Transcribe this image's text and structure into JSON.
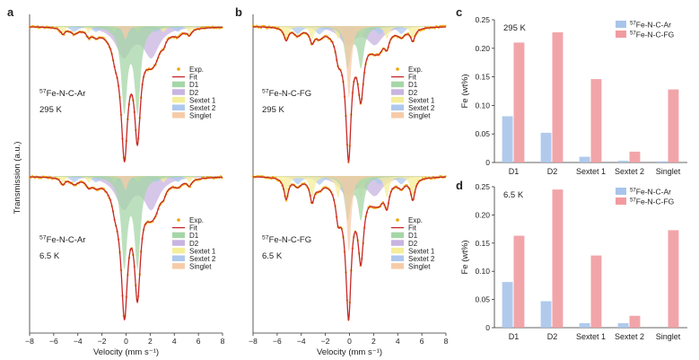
{
  "figure": {
    "panel_labels": [
      "a",
      "b",
      "c",
      "d"
    ],
    "left_ylabel": "Transmission (a.u.)",
    "colors": {
      "exp": "#f0a500",
      "fit": "#c62828",
      "D1": "#a5d6a7",
      "D2": "#c8b4e0",
      "Sextet 1": "#f5ee9a",
      "Sextet 2": "#aec8ee",
      "Singlet": "#f6cba8",
      "ar_bar": "#a9c4ea",
      "fg_bar": "#f19ba0"
    }
  },
  "spectra_panels": [
    {
      "panel": "a",
      "spectra": [
        {
          "sample": "57Fe-N-C-Ar",
          "temp": "295 K"
        },
        {
          "sample": "57Fe-N-C-Ar",
          "temp": "6.5 K"
        }
      ]
    },
    {
      "panel": "b",
      "spectra": [
        {
          "sample": "57Fe-N-C-FG",
          "temp": "295 K"
        },
        {
          "sample": "57Fe-N-C-FG",
          "temp": "6.5 K"
        }
      ]
    }
  ],
  "spectra_legend": [
    "Exp.",
    "Fit",
    "D1",
    "D2",
    "Sextet 1",
    "Sextet 2",
    "Singlet"
  ],
  "chart_data": [
    {
      "panel": "a",
      "type": "line",
      "xlabel": "Velocity (mm s⁻¹)",
      "ylabel": "Transmission (a.u.)",
      "xlim": [
        -8,
        8
      ],
      "xticks": [
        -8,
        -6,
        -4,
        -2,
        0,
        2,
        4,
        6,
        8
      ],
      "series": [
        {
          "name": "Exp."
        },
        {
          "name": "Fit"
        },
        {
          "name": "D1"
        },
        {
          "name": "D2"
        },
        {
          "name": "Sextet 1"
        },
        {
          "name": "Sextet 2"
        },
        {
          "name": "Singlet"
        }
      ]
    },
    {
      "panel": "b",
      "type": "line",
      "xlabel": "Velocity (mm s⁻¹)",
      "xlim": [
        -8,
        8
      ],
      "xticks": [
        -8,
        -6,
        -4,
        -2,
        0,
        2,
        4,
        6,
        8
      ],
      "series": [
        {
          "name": "Exp."
        },
        {
          "name": "Fit"
        },
        {
          "name": "D1"
        },
        {
          "name": "D2"
        },
        {
          "name": "Sextet 1"
        },
        {
          "name": "Sextet 2"
        },
        {
          "name": "Singlet"
        }
      ]
    },
    {
      "panel": "c",
      "type": "bar",
      "annotation": "295 K",
      "ylabel": "Fe (wt%)",
      "ylim": [
        0,
        0.25
      ],
      "yticks": [
        0,
        0.05,
        0.1,
        0.15,
        0.2,
        0.25
      ],
      "ytick_labels": [
        "0",
        "0.05",
        "0.10",
        "0.15",
        "0.20",
        "0.25"
      ],
      "categories": [
        "D1",
        "D2",
        "Sextet 1",
        "Sextet 2",
        "Singlet"
      ],
      "series": [
        {
          "name": "57Fe-N-C-Ar",
          "values": [
            0.081,
            0.052,
            0.01,
            0.003,
            0.002
          ]
        },
        {
          "name": "57Fe-N-C-FG",
          "values": [
            0.21,
            0.228,
            0.146,
            0.019,
            0.128
          ]
        }
      ],
      "legend_position": "top-right"
    },
    {
      "panel": "d",
      "type": "bar",
      "annotation": "6.5 K",
      "ylabel": "Fe (wt%)",
      "ylim": [
        0,
        0.25
      ],
      "yticks": [
        0,
        0.05,
        0.1,
        0.15,
        0.2,
        0.25
      ],
      "ytick_labels": [
        "0",
        "0.05",
        "0.10",
        "0.15",
        "0.20",
        "0.25"
      ],
      "categories": [
        "D1",
        "D2",
        "Sextet 1",
        "Sextet 2",
        "Singlet"
      ],
      "series": [
        {
          "name": "57Fe-N-C-Ar",
          "values": [
            0.081,
            0.047,
            0.008,
            0.008,
            0.0
          ]
        },
        {
          "name": "57Fe-N-C-FG",
          "values": [
            0.163,
            0.245,
            0.128,
            0.021,
            0.173
          ]
        }
      ],
      "legend_position": "top-right"
    }
  ]
}
